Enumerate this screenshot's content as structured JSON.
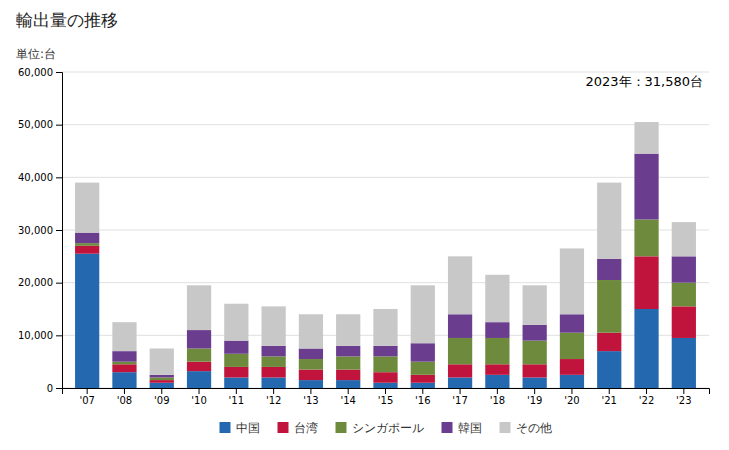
{
  "chart_data": {
    "type": "bar",
    "stacked": true,
    "title": "輸出量の推移",
    "y_label": "単位:台",
    "annotation": "2023年：31,580台",
    "categories": [
      "'07",
      "'08",
      "'09",
      "'10",
      "'11",
      "'12",
      "'13",
      "'14",
      "'15",
      "'16",
      "'17",
      "'18",
      "'19",
      "'20",
      "'21",
      "'22",
      "'23"
    ],
    "series": [
      {
        "name": "中国",
        "color": "#2469b0",
        "values": [
          25500,
          3000,
          1000,
          3200,
          2000,
          2000,
          1500,
          1500,
          1000,
          1000,
          2000,
          2500,
          2000,
          2500,
          7000,
          15000,
          9500
        ]
      },
      {
        "name": "台湾",
        "color": "#c0143c",
        "values": [
          1500,
          1500,
          500,
          1800,
          2000,
          2000,
          2000,
          2000,
          2000,
          1500,
          2500,
          2000,
          2500,
          3000,
          3500,
          10000,
          6000
        ]
      },
      {
        "name": "シンガポール",
        "color": "#6e8b3d",
        "values": [
          500,
          500,
          500,
          2500,
          2500,
          2000,
          2000,
          2500,
          3000,
          2500,
          5000,
          5000,
          4500,
          5000,
          10000,
          7000,
          4500
        ]
      },
      {
        "name": "韓国",
        "color": "#6a3d8f",
        "values": [
          2000,
          2000,
          500,
          3500,
          2500,
          2000,
          2000,
          2000,
          2000,
          3500,
          4500,
          3000,
          3000,
          3500,
          4000,
          12500,
          5000
        ]
      },
      {
        "name": "その他",
        "color": "#c8c8c8",
        "values": [
          9500,
          5500,
          5000,
          8500,
          7000,
          7500,
          6500,
          6000,
          7000,
          11000,
          11000,
          9000,
          7500,
          12500,
          14500,
          6000,
          6500
        ]
      }
    ],
    "ylim": [
      0,
      60000
    ],
    "yticks": [
      0,
      {
        "value": 10000,
        "label": "10,000"
      },
      {
        "value": 20000,
        "label": "20,000"
      },
      {
        "value": 30000,
        "label": "30,000"
      },
      {
        "value": 40000,
        "label": "40,000"
      },
      {
        "value": 50000,
        "label": "50,000"
      },
      {
        "value": 60000,
        "label": "60,000"
      }
    ],
    "grid": true,
    "legend": "bottom"
  }
}
